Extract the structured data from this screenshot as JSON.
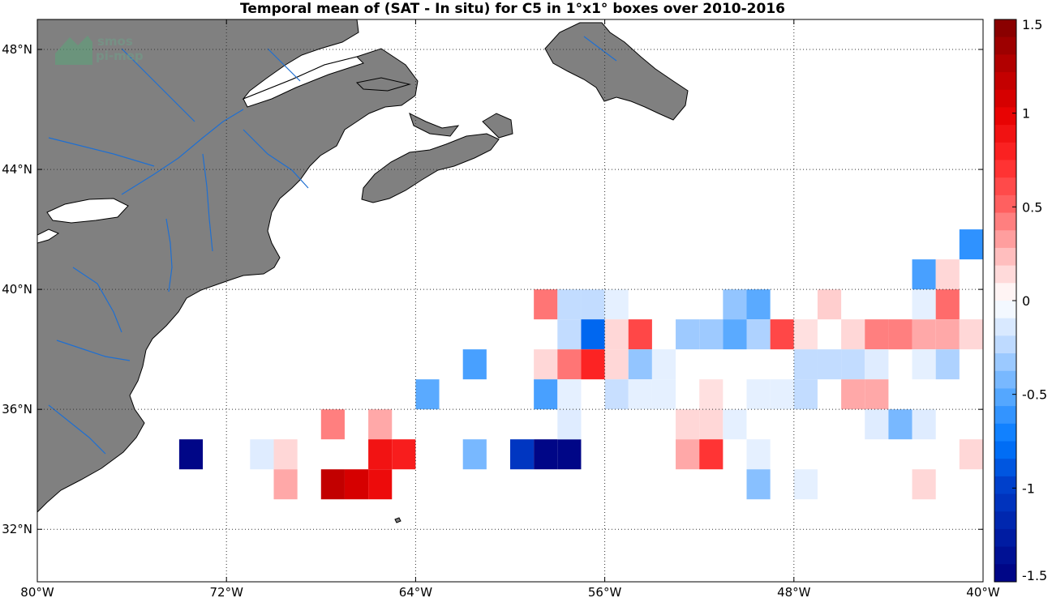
{
  "title": "Temporal mean of (SAT - In situ) for C5 in 1°x1° boxes over 2010-2016",
  "logo": {
    "line1": "smos",
    "line2": "pi-mep"
  },
  "map": {
    "lon_range": [
      -80,
      -40
    ],
    "lat_range": [
      30.25,
      49
    ],
    "land_color": "#808080",
    "river_color": "#1f6fd1",
    "grid": "dotted",
    "x_ticks": [
      {
        "value": -80,
        "label": "80°W"
      },
      {
        "value": -72,
        "label": "72°W"
      },
      {
        "value": -64,
        "label": "64°W"
      },
      {
        "value": -56,
        "label": "56°W"
      },
      {
        "value": -48,
        "label": "48°W"
      },
      {
        "value": -40,
        "label": "40°W"
      }
    ],
    "y_ticks": [
      {
        "value": 32,
        "label": "32°N"
      },
      {
        "value": 36,
        "label": "36°N"
      },
      {
        "value": 40,
        "label": "40°N"
      },
      {
        "value": 44,
        "label": "44°N"
      },
      {
        "value": 48,
        "label": "48°N"
      }
    ]
  },
  "colorbar": {
    "range": [
      -1.5,
      1.5
    ],
    "levels": 32,
    "ticks": [
      {
        "value": 1.5,
        "label": "1.5"
      },
      {
        "value": 1,
        "label": "1"
      },
      {
        "value": 0.5,
        "label": "0.5"
      },
      {
        "value": 0,
        "label": "0"
      },
      {
        "value": -0.5,
        "label": "-0.5"
      },
      {
        "value": -1,
        "label": "-1"
      },
      {
        "value": -1.5,
        "label": "-1.5"
      }
    ]
  },
  "chart_data": {
    "type": "heatmap",
    "title": "Temporal mean of (SAT - In situ) for C5 in 1°x1° boxes over 2010-2016",
    "xlabel": "",
    "ylabel": "",
    "xlim": [
      -80,
      -40
    ],
    "ylim": [
      30.25,
      49
    ],
    "clim": [
      -1.5,
      1.5
    ],
    "cell_size_deg": 1,
    "cells": [
      {
        "lon": -73.5,
        "lat": 34.5,
        "value": -1.45
      },
      {
        "lon": -70.5,
        "lat": 34.5,
        "value": -0.12
      },
      {
        "lon": -69.5,
        "lat": 34.5,
        "value": 0.15
      },
      {
        "lon": -69.5,
        "lat": 33.5,
        "value": 0.3
      },
      {
        "lon": -67.5,
        "lat": 35.5,
        "value": 0.42
      },
      {
        "lon": -67.5,
        "lat": 33.5,
        "value": 1.18
      },
      {
        "lon": -66.5,
        "lat": 33.5,
        "value": 1.08
      },
      {
        "lon": -65.5,
        "lat": 33.5,
        "value": 0.93
      },
      {
        "lon": -65.5,
        "lat": 35.5,
        "value": 0.3
      },
      {
        "lon": -65.5,
        "lat": 34.5,
        "value": 0.88
      },
      {
        "lon": -64.5,
        "lat": 34.5,
        "value": 0.82
      },
      {
        "lon": -63.5,
        "lat": 36.5,
        "value": -0.5
      },
      {
        "lon": -61.5,
        "lat": 34.5,
        "value": -0.42
      },
      {
        "lon": -61.5,
        "lat": 37.5,
        "value": -0.55
      },
      {
        "lon": -59.5,
        "lat": 34.5,
        "value": -1.05
      },
      {
        "lon": -58.5,
        "lat": 34.5,
        "value": -1.45
      },
      {
        "lon": -57.5,
        "lat": 34.5,
        "value": -1.45
      },
      {
        "lon": -57.5,
        "lat": 35.5,
        "value": -0.12
      },
      {
        "lon": -58.5,
        "lat": 39.5,
        "value": 0.45
      },
      {
        "lon": -58.5,
        "lat": 37.5,
        "value": 0.15
      },
      {
        "lon": -58.5,
        "lat": 36.5,
        "value": -0.55
      },
      {
        "lon": -57.5,
        "lat": 39.5,
        "value": -0.22
      },
      {
        "lon": -57.5,
        "lat": 38.5,
        "value": -0.22
      },
      {
        "lon": -57.5,
        "lat": 37.5,
        "value": 0.45
      },
      {
        "lon": -57.5,
        "lat": 36.5,
        "value": -0.1
      },
      {
        "lon": -56.5,
        "lat": 39.5,
        "value": -0.22
      },
      {
        "lon": -56.5,
        "lat": 38.5,
        "value": -0.82
      },
      {
        "lon": -56.5,
        "lat": 37.5,
        "value": 0.78
      },
      {
        "lon": -55.5,
        "lat": 39.5,
        "value": -0.1
      },
      {
        "lon": -55.5,
        "lat": 38.5,
        "value": 0.15
      },
      {
        "lon": -55.5,
        "lat": 37.5,
        "value": 0.15
      },
      {
        "lon": -55.5,
        "lat": 36.5,
        "value": -0.2
      },
      {
        "lon": -54.5,
        "lat": 38.5,
        "value": 0.62
      },
      {
        "lon": -54.5,
        "lat": 37.5,
        "value": -0.35
      },
      {
        "lon": -54.5,
        "lat": 36.5,
        "value": -0.1
      },
      {
        "lon": -53.5,
        "lat": 37.5,
        "value": -0.1
      },
      {
        "lon": -53.5,
        "lat": 36.5,
        "value": -0.1
      },
      {
        "lon": -52.5,
        "lat": 38.5,
        "value": -0.32
      },
      {
        "lon": -51.5,
        "lat": 38.5,
        "value": -0.32
      },
      {
        "lon": -51.5,
        "lat": 36.5,
        "value": 0.12
      },
      {
        "lon": -52.5,
        "lat": 35.5,
        "value": 0.15
      },
      {
        "lon": -52.5,
        "lat": 34.5,
        "value": 0.3
      },
      {
        "lon": -51.5,
        "lat": 35.5,
        "value": 0.15
      },
      {
        "lon": -51.5,
        "lat": 34.5,
        "value": 0.7
      },
      {
        "lon": -50.5,
        "lat": 39.5,
        "value": -0.35
      },
      {
        "lon": -50.5,
        "lat": 38.5,
        "value": -0.5
      },
      {
        "lon": -50.5,
        "lat": 35.5,
        "value": -0.1
      },
      {
        "lon": -49.5,
        "lat": 39.5,
        "value": -0.5
      },
      {
        "lon": -49.5,
        "lat": 38.5,
        "value": -0.28
      },
      {
        "lon": -49.5,
        "lat": 36.5,
        "value": -0.1
      },
      {
        "lon": -49.5,
        "lat": 34.5,
        "value": -0.1
      },
      {
        "lon": -49.5,
        "lat": 33.5,
        "value": -0.38
      },
      {
        "lon": -48.5,
        "lat": 38.5,
        "value": 0.62
      },
      {
        "lon": -48.5,
        "lat": 36.5,
        "value": -0.1
      },
      {
        "lon": -47.5,
        "lat": 38.5,
        "value": 0.12
      },
      {
        "lon": -47.5,
        "lat": 37.5,
        "value": -0.22
      },
      {
        "lon": -47.5,
        "lat": 36.5,
        "value": -0.22
      },
      {
        "lon": -47.5,
        "lat": 33.5,
        "value": -0.1
      },
      {
        "lon": -46.5,
        "lat": 39.5,
        "value": 0.18
      },
      {
        "lon": -46.5,
        "lat": 37.5,
        "value": -0.22
      },
      {
        "lon": -45.5,
        "lat": 38.5,
        "value": 0.15
      },
      {
        "lon": -45.5,
        "lat": 37.5,
        "value": -0.22
      },
      {
        "lon": -45.5,
        "lat": 36.5,
        "value": 0.3
      },
      {
        "lon": -44.5,
        "lat": 38.5,
        "value": 0.42
      },
      {
        "lon": -44.5,
        "lat": 37.5,
        "value": -0.12
      },
      {
        "lon": -44.5,
        "lat": 36.5,
        "value": 0.3
      },
      {
        "lon": -44.5,
        "lat": 35.5,
        "value": -0.12
      },
      {
        "lon": -43.5,
        "lat": 38.5,
        "value": 0.42
      },
      {
        "lon": -43.5,
        "lat": 35.5,
        "value": -0.42
      },
      {
        "lon": -42.5,
        "lat": 35.5,
        "value": -0.12
      },
      {
        "lon": -42.5,
        "lat": 38.5,
        "value": 0.3
      },
      {
        "lon": -42.5,
        "lat": 37.5,
        "value": -0.1
      },
      {
        "lon": -42.5,
        "lat": 39.5,
        "value": -0.1
      },
      {
        "lon": -42.5,
        "lat": 40.5,
        "value": -0.55
      },
      {
        "lon": -42.5,
        "lat": 33.5,
        "value": 0.15
      },
      {
        "lon": -41.5,
        "lat": 40.5,
        "value": 0.15
      },
      {
        "lon": -41.5,
        "lat": 39.5,
        "value": 0.48
      },
      {
        "lon": -41.5,
        "lat": 38.5,
        "value": 0.3
      },
      {
        "lon": -41.5,
        "lat": 37.5,
        "value": -0.28
      },
      {
        "lon": -40.5,
        "lat": 41.5,
        "value": -0.62
      },
      {
        "lon": -40.5,
        "lat": 38.5,
        "value": 0.15
      },
      {
        "lon": -40.5,
        "lat": 34.5,
        "value": 0.15
      }
    ]
  }
}
